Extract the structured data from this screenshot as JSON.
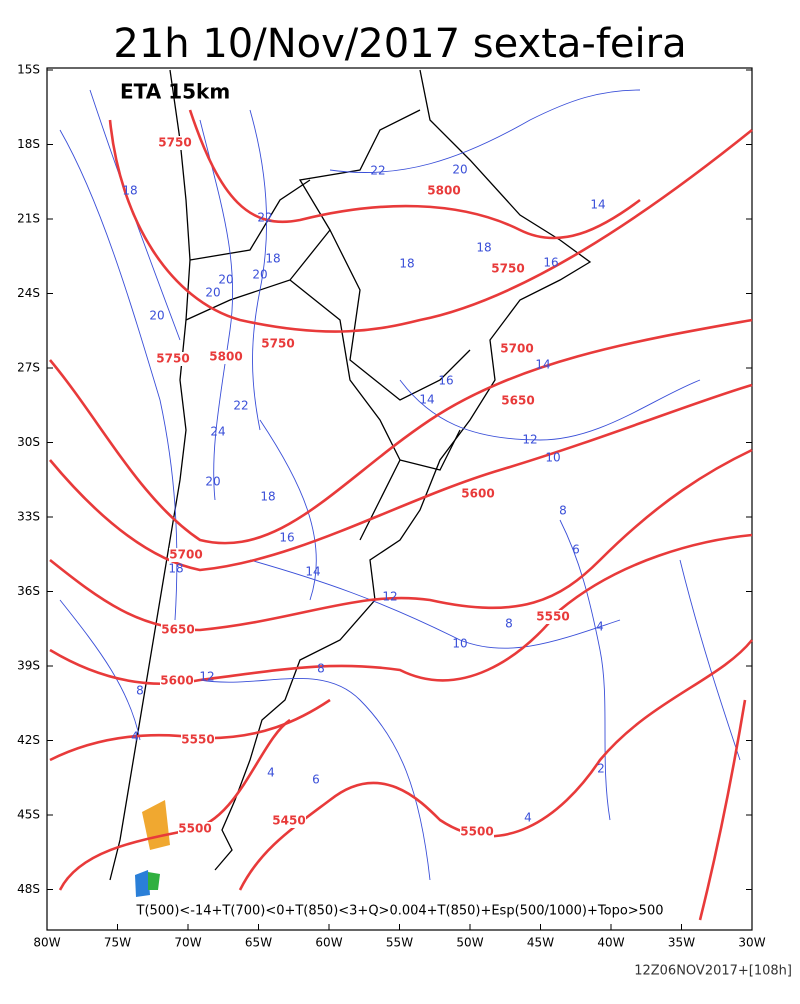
{
  "header": {
    "title": "21h 10/Nov/2017 sexta-feira"
  },
  "map": {
    "model": "ETA 15km",
    "lat_ticks": [
      {
        "value": -15,
        "label": "15S"
      },
      {
        "value": -18,
        "label": "18S"
      },
      {
        "value": -21,
        "label": "21S"
      },
      {
        "value": -24,
        "label": "24S"
      },
      {
        "value": -27,
        "label": "27S"
      },
      {
        "value": -30,
        "label": "30S"
      },
      {
        "value": -33,
        "label": "33S"
      },
      {
        "value": -36,
        "label": "36S"
      },
      {
        "value": -39,
        "label": "39S"
      },
      {
        "value": -42,
        "label": "42S"
      },
      {
        "value": -45,
        "label": "45S"
      },
      {
        "value": -48,
        "label": "48S"
      }
    ],
    "lon_ticks": [
      {
        "value": -80,
        "label": "80W"
      },
      {
        "value": -75,
        "label": "75W"
      },
      {
        "value": -70,
        "label": "70W"
      },
      {
        "value": -65,
        "label": "65W"
      },
      {
        "value": -60,
        "label": "60W"
      },
      {
        "value": -55,
        "label": "55W"
      },
      {
        "value": -50,
        "label": "50W"
      },
      {
        "value": -45,
        "label": "45W"
      },
      {
        "value": -40,
        "label": "40W"
      },
      {
        "value": -35,
        "label": "35W"
      },
      {
        "value": -30,
        "label": "30W"
      }
    ],
    "height_labels": [
      5750,
      5800,
      5750,
      5750,
      5800,
      5750,
      5700,
      5650,
      5600,
      5700,
      5550,
      5650,
      5600,
      5550,
      5500,
      5450,
      5500
    ],
    "temperature_labels": [
      18,
      22,
      20,
      22,
      18,
      18,
      16,
      14,
      18,
      20,
      20,
      20,
      20,
      14,
      16,
      14,
      22,
      24,
      12,
      10,
      20,
      18,
      8,
      16,
      6,
      18,
      14,
      12,
      4,
      8,
      10,
      8,
      12,
      8,
      4,
      4,
      6,
      2,
      4
    ],
    "legend": "T(500)<-14+T(700)<0+T(850)<3+Q>0.004+T(850)+Esp(500/1000)+Topo>500",
    "run": "12Z06NOV2017+[108h]"
  }
}
